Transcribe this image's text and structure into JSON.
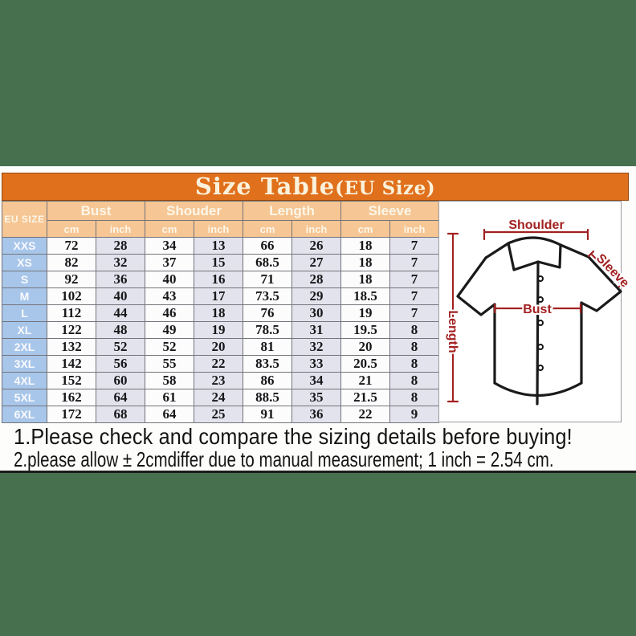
{
  "title": {
    "main": "Size Table",
    "suffix": "(EU Size)"
  },
  "table": {
    "corner_label": "EU SIZE",
    "groups": [
      {
        "label": "Bust"
      },
      {
        "label": "Shouder"
      },
      {
        "label": "Length"
      },
      {
        "label": "Sleeve"
      }
    ],
    "unit_labels": [
      "cm",
      "inch",
      "cm",
      "inch",
      "cm",
      "inch",
      "cm",
      "inch"
    ],
    "rows": [
      {
        "size": "XXS",
        "values": [
          "72",
          "28",
          "34",
          "13",
          "66",
          "26",
          "18",
          "7"
        ]
      },
      {
        "size": "XS",
        "values": [
          "82",
          "32",
          "37",
          "15",
          "68.5",
          "27",
          "18",
          "7"
        ]
      },
      {
        "size": "S",
        "values": [
          "92",
          "36",
          "40",
          "16",
          "71",
          "28",
          "18",
          "7"
        ]
      },
      {
        "size": "M",
        "values": [
          "102",
          "40",
          "43",
          "17",
          "73.5",
          "29",
          "18.5",
          "7"
        ]
      },
      {
        "size": "L",
        "values": [
          "112",
          "44",
          "46",
          "18",
          "76",
          "30",
          "19",
          "7"
        ]
      },
      {
        "size": "XL",
        "values": [
          "122",
          "48",
          "49",
          "19",
          "78.5",
          "31",
          "19.5",
          "8"
        ]
      },
      {
        "size": "2XL",
        "values": [
          "132",
          "52",
          "52",
          "20",
          "81",
          "32",
          "20",
          "8"
        ]
      },
      {
        "size": "3XL",
        "values": [
          "142",
          "56",
          "55",
          "22",
          "83.5",
          "33",
          "20.5",
          "8"
        ]
      },
      {
        "size": "4XL",
        "values": [
          "152",
          "60",
          "58",
          "23",
          "86",
          "34",
          "21",
          "8"
        ]
      },
      {
        "size": "5XL",
        "values": [
          "162",
          "64",
          "61",
          "24",
          "88.5",
          "35",
          "21.5",
          "8"
        ]
      },
      {
        "size": "6XL",
        "values": [
          "172",
          "68",
          "64",
          "25",
          "91",
          "36",
          "22",
          "9"
        ]
      }
    ]
  },
  "diagram": {
    "labels": {
      "shoulder": "Shoulder",
      "sleeve": "Sleeve",
      "bust": "Bust",
      "length": "Length"
    }
  },
  "notes": [
    "1.Please check and compare the sizing details before buying!",
    "2.please allow ± 2cmdiffer due to manual measurement; 1 inch = 2.54 cm."
  ],
  "colors": {
    "page_background_green": "#47714E",
    "title_bar_orange": "#E0701C",
    "header_peach": "#F6C694",
    "size_column_blue": "#A8C6E9",
    "inch_cell_lavender": "#E3E3ED",
    "cm_cell_white": "#FCFCFC",
    "measure_label_red": "#A32121",
    "title_text_cream": "#FBF2DC"
  },
  "chart_data": {
    "type": "table",
    "title": "Size Table(EU Size)",
    "columns": [
      "EU SIZE",
      "Bust cm",
      "Bust inch",
      "Shouder cm",
      "Shouder inch",
      "Length cm",
      "Length inch",
      "Sleeve cm",
      "Sleeve inch"
    ],
    "rows": [
      [
        "XXS",
        72,
        28,
        34,
        13,
        66,
        26,
        18,
        7
      ],
      [
        "XS",
        82,
        32,
        37,
        15,
        68.5,
        27,
        18,
        7
      ],
      [
        "S",
        92,
        36,
        40,
        16,
        71,
        28,
        18,
        7
      ],
      [
        "M",
        102,
        40,
        43,
        17,
        73.5,
        29,
        18.5,
        7
      ],
      [
        "L",
        112,
        44,
        46,
        18,
        76,
        30,
        19,
        7
      ],
      [
        "XL",
        122,
        48,
        49,
        19,
        78.5,
        31,
        19.5,
        8
      ],
      [
        "2XL",
        132,
        52,
        52,
        20,
        81,
        32,
        20,
        8
      ],
      [
        "3XL",
        142,
        56,
        55,
        22,
        83.5,
        33,
        20.5,
        8
      ],
      [
        "4XL",
        152,
        60,
        58,
        23,
        86,
        34,
        21,
        8
      ],
      [
        "5XL",
        162,
        64,
        61,
        24,
        88.5,
        35,
        21.5,
        8
      ],
      [
        "6XL",
        172,
        68,
        64,
        25,
        91,
        36,
        22,
        9
      ]
    ],
    "annotations": [
      "Shoulder",
      "Sleeve",
      "Bust",
      "Length"
    ]
  }
}
